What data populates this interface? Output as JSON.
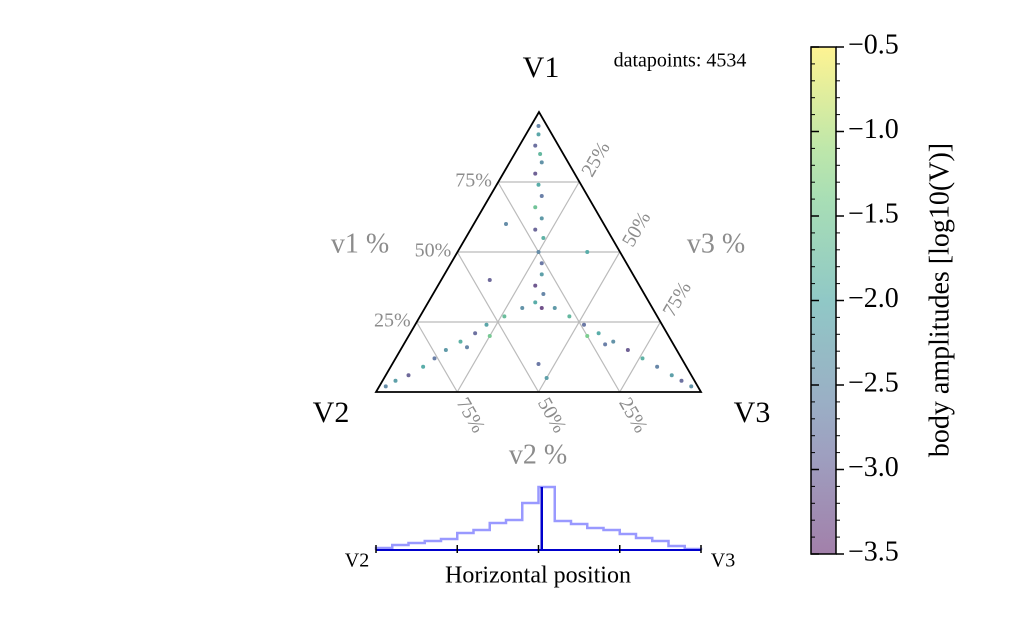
{
  "chart_data": [
    {
      "type": "ternary",
      "corner_labels": [
        "V1",
        "V2",
        "V3"
      ],
      "axis_labels": {
        "v1": "v1 %",
        "v2": "v2 %",
        "v3": "v3 %"
      },
      "annotation": "datapoints: 4534",
      "v1ticks": [
        {
          "value": 0.25,
          "label": "25%"
        },
        {
          "value": 0.5,
          "label": "50%"
        },
        {
          "value": 0.75,
          "label": "75%"
        }
      ],
      "v2ticks": [
        {
          "value": 0.25,
          "label": "25%"
        },
        {
          "value": 0.5,
          "label": "50%"
        },
        {
          "value": 0.75,
          "label": "75%"
        }
      ],
      "v3ticks": [
        {
          "value": 0.25,
          "label": "25%"
        },
        {
          "value": 0.5,
          "label": "50%"
        },
        {
          "value": 0.75,
          "label": "75%"
        }
      ],
      "grid": true,
      "colormap": "viridis",
      "alpha": 0.5,
      "points": {
        "v1": [
          0.95,
          0.92,
          0.88,
          0.85,
          0.82,
          0.78,
          0.74,
          0.7,
          0.66,
          0.62,
          0.58,
          0.55,
          0.5,
          0.46,
          0.42,
          0.38,
          0.35,
          0.32,
          0.3,
          0.3,
          0.27,
          0.24,
          0.21,
          0.18,
          0.15,
          0.12,
          0.09,
          0.06,
          0.04,
          0.02,
          0.2,
          0.16,
          0.3,
          0.27,
          0.24,
          0.21,
          0.18,
          0.15,
          0.12,
          0.09,
          0.06,
          0.04,
          0.02,
          0.2,
          0.17,
          0.6,
          0.5,
          0.1,
          0.4,
          0.05
        ],
        "v3": [
          0.025,
          0.04,
          0.05,
          0.08,
          0.1,
          0.1,
          0.13,
          0.16,
          0.16,
          0.2,
          0.2,
          0.24,
          0.25,
          0.28,
          0.3,
          0.3,
          0.34,
          0.33,
          0.36,
          0.3,
          0.26,
          0.22,
          0.2,
          0.17,
          0.14,
          0.12,
          0.1,
          0.07,
          0.04,
          0.02,
          0.25,
          0.2,
          0.4,
          0.46,
          0.52,
          0.58,
          0.64,
          0.7,
          0.76,
          0.82,
          0.88,
          0.92,
          0.96,
          0.55,
          0.62,
          0.1,
          0.4,
          0.45,
          0.15,
          0.5
        ],
        "amplitude": [
          -2.6,
          -2.1,
          -2.9,
          -1.8,
          -2.4,
          -3.1,
          -2.0,
          -2.7,
          -1.6,
          -2.3,
          -3.0,
          -1.9,
          -2.5,
          -2.8,
          -2.2,
          -3.2,
          -2.6,
          -2.0,
          -3.3,
          -2.4,
          -1.7,
          -2.1,
          -2.9,
          -1.9,
          -2.3,
          -2.7,
          -2.0,
          -3.0,
          -2.2,
          -2.5,
          -1.5,
          -2.6,
          -2.3,
          -1.8,
          -2.8,
          -2.0,
          -2.4,
          -3.1,
          -1.9,
          -2.6,
          -2.2,
          -2.9,
          -2.4,
          -1.4,
          -2.7,
          -2.5,
          -2.0,
          -2.8,
          -3.0,
          -2.2
        ]
      },
      "colorbar": {
        "label": "body amplitudes [log10(V)]",
        "lim": [
          -3.5,
          -0.5
        ],
        "ticks": [
          {
            "value": -0.5,
            "label": "−0.5"
          },
          {
            "value": -1.0,
            "label": "−1.0"
          },
          {
            "value": -1.5,
            "label": "−1.5"
          },
          {
            "value": -2.0,
            "label": "−2.0"
          },
          {
            "value": -2.5,
            "label": "−2.5"
          },
          {
            "value": -3.0,
            "label": "−3.0"
          },
          {
            "value": -3.5,
            "label": "−3.5"
          }
        ]
      }
    },
    {
      "type": "histogram",
      "xlabel": "Horizontal position",
      "left_label": "V2",
      "right_label": "V3",
      "bins": [
        0,
        0.05,
        0.1,
        0.15,
        0.2,
        0.25,
        0.3,
        0.35,
        0.4,
        0.45,
        0.5,
        0.55,
        0.6,
        0.65,
        0.7,
        0.75,
        0.8,
        0.85,
        0.9,
        0.95,
        1
      ],
      "counts": [
        2,
        5,
        7,
        9,
        11,
        17,
        20,
        27,
        30,
        47,
        63,
        29,
        26,
        22,
        20,
        16,
        12,
        9,
        4,
        1
      ],
      "xlim": [
        0,
        1
      ],
      "xticks": [
        0,
        0.25,
        0.5,
        0.75,
        1
      ],
      "marker": 0.51,
      "color": "#9999ff",
      "marker_color": "#0000cc"
    }
  ]
}
